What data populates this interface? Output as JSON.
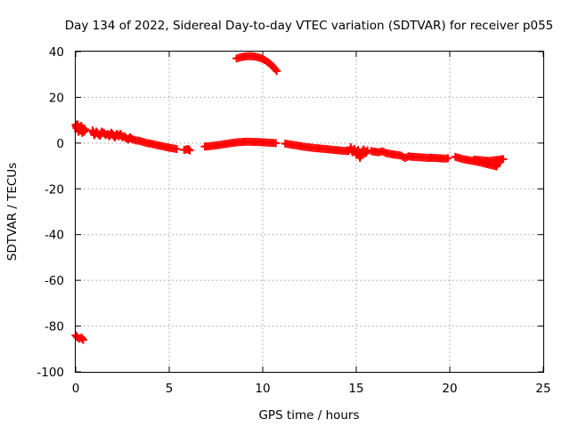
{
  "chart_data": {
    "type": "scatter",
    "title": "Day 134 of 2022, Sidereal Day-to-day VTEC variation (SDTVAR) for receiver p055",
    "xlabel": "GPS time / hours",
    "ylabel": "SDTVAR / TECUs",
    "xlim": [
      0,
      25
    ],
    "ylim": [
      -100,
      40
    ],
    "xticks": [
      "0",
      "5",
      "10",
      "15",
      "20",
      "25"
    ],
    "yticks": [
      "40",
      "20",
      "0",
      "-20",
      "-40",
      "-60",
      "-80",
      "-100"
    ],
    "grid": true,
    "legend": "none",
    "series": [
      {
        "name": "SDTVAR",
        "color": "#ff0000",
        "marker": "plus",
        "segments": [
          [
            [
              0.0,
              8
            ],
            [
              0.05,
              6.5
            ],
            [
              0.1,
              8.2
            ],
            [
              0.15,
              5
            ],
            [
              0.2,
              7
            ],
            [
              0.25,
              5.5
            ],
            [
              0.3,
              7.5
            ],
            [
              0.35,
              4.5
            ],
            [
              0.4,
              6.5
            ],
            [
              0.45,
              5
            ],
            [
              0.5,
              6
            ]
          ],
          [
            [
              0.0,
              -84
            ],
            [
              0.1,
              -85
            ],
            [
              0.2,
              -85.5
            ],
            [
              0.3,
              -85
            ],
            [
              0.4,
              -86
            ]
          ],
          [
            [
              0.9,
              5.5
            ],
            [
              1.0,
              3.5
            ],
            [
              1.1,
              5
            ],
            [
              1.2,
              4
            ],
            [
              1.3,
              3.2
            ],
            [
              1.4,
              5
            ],
            [
              1.5,
              4.5
            ],
            [
              1.6,
              3.5
            ],
            [
              1.7,
              4
            ],
            [
              1.8,
              3
            ],
            [
              1.9,
              4.5
            ],
            [
              2.0,
              3.5
            ],
            [
              2.1,
              2.5
            ],
            [
              2.2,
              4
            ],
            [
              2.3,
              3
            ],
            [
              2.4,
              4
            ],
            [
              2.5,
              2.5
            ],
            [
              2.6,
              3
            ],
            [
              2.7,
              2
            ],
            [
              2.8,
              1.5
            ],
            [
              2.9,
              2.5
            ],
            [
              3.0,
              1.8
            ],
            [
              3.2,
              1.2
            ],
            [
              3.4,
              1
            ],
            [
              3.6,
              0.5
            ],
            [
              3.8,
              0
            ],
            [
              4.0,
              -0.2
            ],
            [
              4.2,
              -0.6
            ],
            [
              4.4,
              -1
            ],
            [
              4.6,
              -1.3
            ],
            [
              4.8,
              -1.7
            ],
            [
              5.0,
              -2
            ],
            [
              5.2,
              -2.3
            ],
            [
              5.4,
              -2.6
            ]
          ],
          [
            [
              5.8,
              -3
            ],
            [
              6.0,
              -2.6
            ],
            [
              6.1,
              -3.2
            ]
          ],
          [
            [
              6.9,
              -1.5
            ],
            [
              7.1,
              -1.4
            ],
            [
              7.3,
              -1.2
            ],
            [
              7.5,
              -1
            ],
            [
              7.7,
              -0.8
            ],
            [
              7.9,
              -0.5
            ],
            [
              8.1,
              -0.3
            ],
            [
              8.3,
              0
            ],
            [
              8.5,
              0.2
            ],
            [
              8.7,
              0.4
            ],
            [
              8.9,
              0.5
            ],
            [
              9.1,
              0.6
            ],
            [
              9.3,
              0.6
            ],
            [
              9.5,
              0.5
            ],
            [
              9.7,
              0.5
            ],
            [
              9.9,
              0.4
            ],
            [
              10.1,
              0.3
            ],
            [
              10.3,
              0.2
            ],
            [
              10.5,
              0.1
            ],
            [
              10.7,
              0
            ]
          ],
          [
            [
              8.6,
              37
            ],
            [
              8.8,
              37.5
            ],
            [
              9.0,
              37.8
            ],
            [
              9.2,
              38
            ],
            [
              9.4,
              38
            ],
            [
              9.6,
              37.8
            ],
            [
              9.8,
              37.4
            ],
            [
              10.0,
              36.8
            ],
            [
              10.2,
              35.8
            ],
            [
              10.4,
              34.6
            ],
            [
              10.6,
              33
            ],
            [
              10.75,
              31.5
            ]
          ],
          [
            [
              11.2,
              -0.2
            ],
            [
              11.4,
              -0.5
            ],
            [
              11.6,
              -0.8
            ],
            [
              11.8,
              -1
            ],
            [
              12.0,
              -1.3
            ],
            [
              12.2,
              -1.6
            ],
            [
              12.4,
              -1.8
            ],
            [
              12.6,
              -2
            ],
            [
              12.8,
              -2.2
            ],
            [
              13.0,
              -2.3
            ],
            [
              13.2,
              -2.5
            ],
            [
              13.4,
              -2.6
            ],
            [
              13.6,
              -2.8
            ],
            [
              13.8,
              -3
            ],
            [
              14.0,
              -3.1
            ],
            [
              14.2,
              -3.3
            ],
            [
              14.4,
              -3.4
            ],
            [
              14.6,
              -3.5
            ]
          ],
          [
            [
              14.7,
              -1.8
            ],
            [
              14.8,
              -4
            ],
            [
              14.9,
              -2.5
            ],
            [
              15.0,
              -5
            ],
            [
              15.1,
              -3
            ],
            [
              15.2,
              -6.5
            ],
            [
              15.3,
              -4
            ],
            [
              15.4,
              -2.8
            ],
            [
              15.5,
              -4.5
            ],
            [
              15.6,
              -3.2
            ]
          ],
          [
            [
              15.8,
              -3.5
            ],
            [
              16.0,
              -3.8
            ],
            [
              16.2,
              -4
            ],
            [
              16.4,
              -3.6
            ],
            [
              16.6,
              -4.4
            ],
            [
              16.8,
              -4.7
            ],
            [
              17.0,
              -5
            ],
            [
              17.2,
              -5.2
            ],
            [
              17.4,
              -5.5
            ],
            [
              17.6,
              -6.5
            ],
            [
              17.8,
              -5.8
            ],
            [
              18.0,
              -6
            ],
            [
              18.2,
              -6.1
            ],
            [
              18.4,
              -6.2
            ],
            [
              18.6,
              -6.3
            ],
            [
              18.8,
              -6.5
            ],
            [
              19.0,
              -6.4
            ],
            [
              19.2,
              -6.5
            ],
            [
              19.4,
              -6.6
            ],
            [
              19.6,
              -6.7
            ],
            [
              19.8,
              -6.8
            ],
            [
              19.9,
              -6.6
            ]
          ],
          [
            [
              20.3,
              -6
            ],
            [
              20.5,
              -6.5
            ],
            [
              20.7,
              -7
            ],
            [
              20.9,
              -7.3
            ],
            [
              21.1,
              -7.6
            ],
            [
              21.3,
              -7.9
            ],
            [
              21.5,
              -8.2
            ],
            [
              21.7,
              -8.6
            ],
            [
              21.9,
              -9
            ],
            [
              22.1,
              -9.4
            ],
            [
              22.3,
              -9.8
            ],
            [
              22.5,
              -10.2
            ],
            [
              22.6,
              -8.5
            ]
          ],
          [
            [
              21.3,
              -7.2
            ],
            [
              21.5,
              -7.4
            ],
            [
              21.7,
              -7.5
            ],
            [
              21.9,
              -7.7
            ],
            [
              22.1,
              -7.8
            ],
            [
              22.3,
              -7.6
            ],
            [
              22.5,
              -7.4
            ],
            [
              22.7,
              -7.2
            ],
            [
              22.85,
              -7
            ]
          ]
        ]
      }
    ]
  }
}
